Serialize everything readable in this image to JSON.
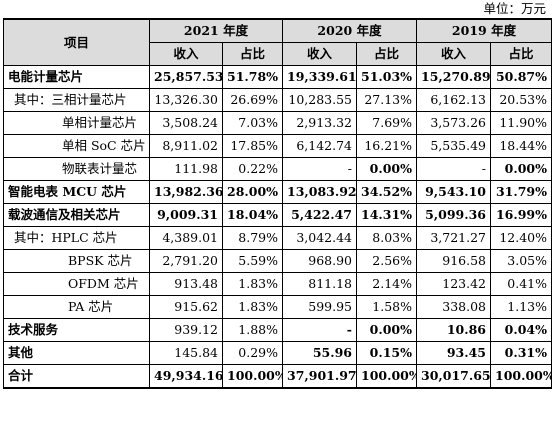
{
  "unit_label": "单位：万元",
  "header": {
    "item": "项目",
    "years": [
      "2021 年度",
      "2020 年度",
      "2019 年度"
    ],
    "revenue": "收入",
    "share": "占比"
  },
  "rows": [
    {
      "label": "电能计量芯片",
      "v": [
        "25,857.53",
        "51.78%",
        "19,339.61",
        "51.03%",
        "15,270.89",
        "50.87%"
      ]
    },
    {
      "label": "其中：三相计量芯片",
      "v": [
        "13,326.30",
        "26.69%",
        "10,283.55",
        "27.13%",
        "6,162.13",
        "20.53%"
      ]
    },
    {
      "label": "单相计量芯片",
      "v": [
        "3,508.24",
        "7.03%",
        "2,913.32",
        "7.69%",
        "3,573.26",
        "11.90%"
      ]
    },
    {
      "label": "单相 SoC 芯片",
      "v": [
        "8,911.02",
        "17.85%",
        "6,142.74",
        "16.21%",
        "5,535.49",
        "18.44%"
      ]
    },
    {
      "label": "物联表计量芯",
      "v": [
        "111.98",
        "0.22%",
        "-",
        "0.00%",
        "-",
        "0.00%"
      ]
    },
    {
      "label": "智能电表 MCU 芯片",
      "v": [
        "13,982.36",
        "28.00%",
        "13,083.92",
        "34.52%",
        "9,543.10",
        "31.79%"
      ]
    },
    {
      "label": "载波通信及相关芯片",
      "v": [
        "9,009.31",
        "18.04%",
        "5,422.47",
        "14.31%",
        "5,099.36",
        "16.99%"
      ]
    },
    {
      "label": "其中：HPLC 芯片",
      "v": [
        "4,389.01",
        "8.79%",
        "3,042.44",
        "8.03%",
        "3,721.27",
        "12.40%"
      ]
    },
    {
      "label": "BPSK 芯片",
      "v": [
        "2,791.20",
        "5.59%",
        "968.90",
        "2.56%",
        "916.58",
        "3.05%"
      ]
    },
    {
      "label": "OFDM 芯片",
      "v": [
        "913.48",
        "1.83%",
        "811.18",
        "2.14%",
        "123.42",
        "0.41%"
      ]
    },
    {
      "label": "PA 芯片",
      "v": [
        "915.62",
        "1.83%",
        "599.95",
        "1.58%",
        "338.08",
        "1.13%"
      ]
    },
    {
      "label": "技术服务",
      "v": [
        "939.12",
        "1.88%",
        "-",
        "0.00%",
        "10.86",
        "0.04%"
      ]
    },
    {
      "label": "其他",
      "v": [
        "145.84",
        "0.29%",
        "55.96",
        "0.15%",
        "93.45",
        "0.31%"
      ]
    },
    {
      "label": "合计",
      "v": [
        "49,934.16",
        "100.00%",
        "37,901.97",
        "100.00%",
        "30,017.65",
        "100.00%"
      ]
    }
  ]
}
